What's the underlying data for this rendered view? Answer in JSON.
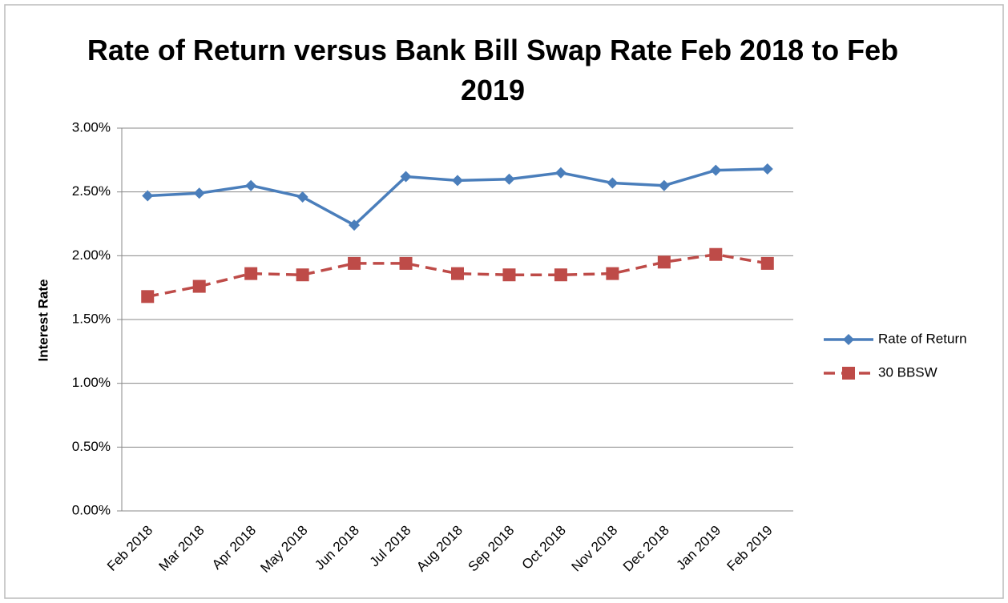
{
  "chart_data": {
    "type": "line",
    "title": "Rate of Return versus Bank Bill Swap Rate Feb 2018 to Feb 2019",
    "y_label": "Interest Rate",
    "categories": [
      "Feb 2018",
      "Mar 2018",
      "Apr 2018",
      "May 2018",
      "Jun 2018",
      "Jul 2018",
      "Aug 2018",
      "Sep 2018",
      "Oct 2018",
      "Nov 2018",
      "Dec 2018",
      "Jan 2019",
      "Feb 2019"
    ],
    "series": [
      {
        "name": "Rate of Return",
        "color": "#4a7ebb",
        "values": [
          2.47,
          2.49,
          2.55,
          2.46,
          2.24,
          2.62,
          2.59,
          2.6,
          2.65,
          2.57,
          2.55,
          2.67,
          2.68
        ]
      },
      {
        "name": "30 BBSW",
        "color": "#be4b48",
        "values": [
          1.68,
          1.76,
          1.86,
          1.85,
          1.94,
          1.94,
          1.86,
          1.85,
          1.85,
          1.86,
          1.95,
          2.01,
          1.94
        ]
      }
    ],
    "ylim": [
      0,
      3
    ],
    "yticks": [
      {
        "value": 0,
        "label": "0.00%"
      },
      {
        "value": 0.5,
        "label": "0.50%"
      },
      {
        "value": 1,
        "label": "1.00%"
      },
      {
        "value": 1.5,
        "label": "1.50%"
      },
      {
        "value": 2,
        "label": "2.00%"
      },
      {
        "value": 2.5,
        "label": "2.50%"
      },
      {
        "value": 3,
        "label": "3.00%"
      }
    ],
    "grid": true,
    "legend": "right"
  }
}
